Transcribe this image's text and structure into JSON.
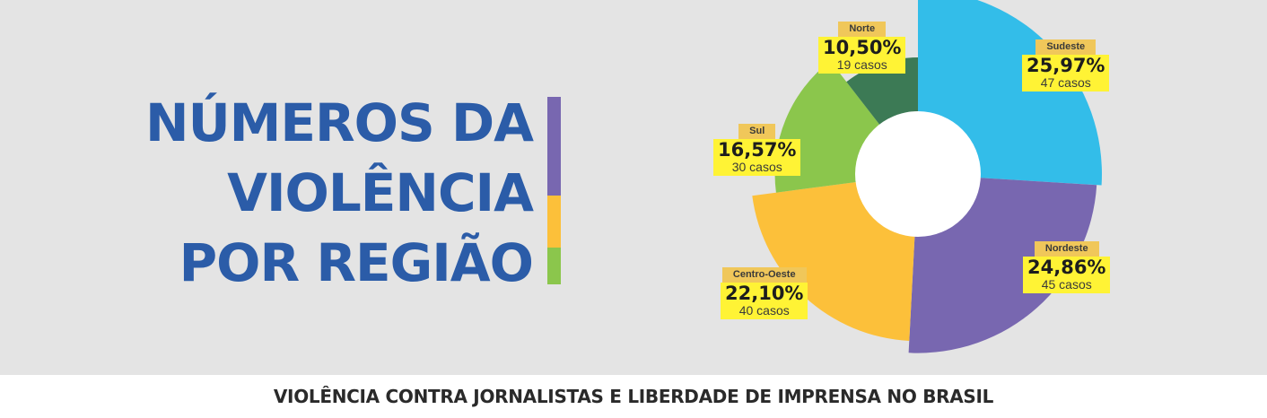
{
  "title": {
    "line1": "NÚMEROS DA",
    "line2": "VIOLÊNCIA",
    "line3": "POR REGIÃO"
  },
  "footer": "VIOLÊNCIA CONTRA JORNALISTAS E LIBERDADE DE IMPRENSA NO BRASIL",
  "colors": {
    "title": "#2b5ca8",
    "bar_purple": "#7867b0",
    "bar_yellow": "#fcc03a",
    "bar_green": "#8bc64c",
    "label_name_bg": "#f0c75a",
    "label_value_bg": "#fff335"
  },
  "chart_data": {
    "type": "pie",
    "style": "rose-donut",
    "slices": [
      {
        "name": "Sudeste",
        "value": 25.97,
        "pct": "25,97%",
        "cases": "47 casos",
        "color": "#33bde9"
      },
      {
        "name": "Nordeste",
        "value": 24.86,
        "pct": "24,86%",
        "cases": "45 casos",
        "color": "#7867b0"
      },
      {
        "name": "Centro-Oeste",
        "value": 22.1,
        "pct": "22,10%",
        "cases": "40 casos",
        "color": "#fcc03a"
      },
      {
        "name": "Sul",
        "value": 16.57,
        "pct": "16,57%",
        "cases": "30 casos",
        "color": "#8bc64c"
      },
      {
        "name": "Norte",
        "value": 10.5,
        "pct": "10,50%",
        "cases": "19 casos",
        "color": "#3c7a55"
      }
    ]
  }
}
